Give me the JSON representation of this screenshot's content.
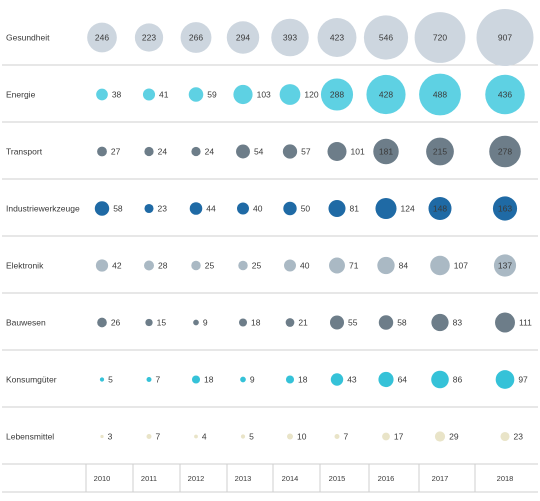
{
  "chart_data": {
    "type": "bubble-matrix",
    "years": [
      "2010",
      "2011",
      "2012",
      "2013",
      "2014",
      "2015",
      "2016",
      "2017",
      "2018"
    ],
    "series": [
      {
        "name": "Gesundheit",
        "color": "#cdd6df",
        "values": [
          246,
          223,
          266,
          294,
          393,
          423,
          546,
          720,
          907
        ]
      },
      {
        "name": "Energie",
        "color": "#5ed1e3",
        "values": [
          38,
          41,
          59,
          103,
          120,
          288,
          428,
          488,
          436
        ]
      },
      {
        "name": "Transport",
        "color": "#6d7d89",
        "values": [
          27,
          24,
          24,
          54,
          57,
          101,
          181,
          215,
          278
        ]
      },
      {
        "name": "Industriewerkzeuge",
        "color": "#1f6aa5",
        "values": [
          58,
          23,
          44,
          40,
          50,
          81,
          124,
          148,
          163
        ]
      },
      {
        "name": "Elektronik",
        "color": "#aab9c4",
        "values": [
          42,
          28,
          25,
          25,
          40,
          71,
          84,
          107,
          137
        ]
      },
      {
        "name": "Bauwesen",
        "color": "#6d7d89",
        "values": [
          26,
          15,
          9,
          18,
          21,
          55,
          58,
          83,
          111
        ]
      },
      {
        "name": "Konsumgüter",
        "color": "#35c2d8",
        "values": [
          5,
          7,
          18,
          9,
          18,
          43,
          64,
          86,
          97
        ]
      },
      {
        "name": "Lebensmittel",
        "color": "#e9e4c8",
        "values": [
          3,
          7,
          4,
          5,
          10,
          7,
          17,
          29,
          23
        ]
      }
    ],
    "colors": {
      "gridline": "#cfcfcf",
      "text": "#3a3a3a"
    }
  }
}
